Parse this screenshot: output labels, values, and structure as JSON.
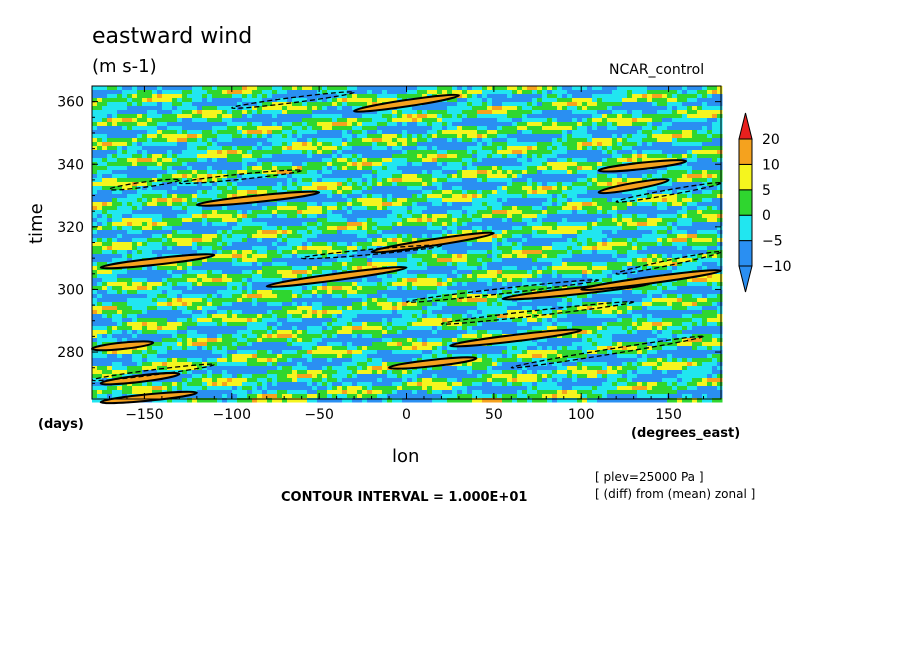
{
  "header": {
    "title": "eastward wind",
    "units": "(m s-1)",
    "run": "NCAR_control"
  },
  "footer": {
    "contour_interval": "CONTOUR INTERVAL = 1.000E+01",
    "level_note": "[ plev=25000 Pa ]",
    "diff_note": "[ (diff) from (mean) zonal ]"
  },
  "colors": {
    "red": "#e8201e",
    "orange": "#f5a21e",
    "yellow": "#f5f51e",
    "green": "#2fd62f",
    "cyan": "#21e6f0",
    "blue": "#2a8ff2"
  },
  "chart_data": {
    "type": "heatmap",
    "title": "eastward wind",
    "subtitle": "(m s-1)",
    "xlabel": "lon",
    "ylabel": "time",
    "x_units": "(degrees_east)",
    "y_units": "(days)",
    "xlim": [
      -180,
      180
    ],
    "ylim": [
      265,
      365
    ],
    "x_ticks": [
      -150,
      -100,
      -50,
      0,
      50,
      100,
      150
    ],
    "y_ticks": [
      280,
      300,
      320,
      340,
      360
    ],
    "colorbar": {
      "levels": [
        -10,
        -5,
        0,
        5,
        10,
        20
      ],
      "colors": [
        "#2a8ff2",
        "#21e6f0",
        "#2fd62f",
        "#f5f51e",
        "#f5a21e",
        "#e8201e"
      ]
    },
    "contours": [
      {
        "lon_start": -175,
        "lon_end": -110,
        "time_start": 307,
        "time_end": 311,
        "level": 10
      },
      {
        "lon_start": -180,
        "lon_end": -145,
        "time_start": 281,
        "time_end": 283,
        "level": 10
      },
      {
        "lon_start": -175,
        "lon_end": -130,
        "time_start": 270,
        "time_end": 273,
        "level": 10
      },
      {
        "lon_start": -175,
        "lon_end": -120,
        "time_start": 264,
        "time_end": 267,
        "level": 10
      },
      {
        "lon_start": -120,
        "lon_end": -50,
        "time_start": 327,
        "time_end": 331,
        "level": 10
      },
      {
        "lon_start": -80,
        "lon_end": 0,
        "time_start": 301,
        "time_end": 307,
        "level": 10
      },
      {
        "lon_start": -30,
        "lon_end": 30,
        "time_start": 357,
        "time_end": 362,
        "level": 10
      },
      {
        "lon_start": -20,
        "lon_end": 50,
        "time_start": 312,
        "time_end": 318,
        "level": 10
      },
      {
        "lon_start": 25,
        "lon_end": 100,
        "time_start": 282,
        "time_end": 287,
        "level": 10
      },
      {
        "lon_start": 55,
        "lon_end": 140,
        "time_start": 297,
        "time_end": 302,
        "level": 10
      },
      {
        "lon_start": 110,
        "lon_end": 160,
        "time_start": 338,
        "time_end": 341,
        "level": 10
      },
      {
        "lon_start": 110,
        "lon_end": 150,
        "time_start": 331,
        "time_end": 335,
        "level": 10
      },
      {
        "lon_start": 100,
        "lon_end": 180,
        "time_start": 300,
        "time_end": 306,
        "level": 10
      },
      {
        "lon_start": -10,
        "lon_end": 40,
        "time_start": 275,
        "time_end": 278,
        "level": 10
      },
      {
        "lon_start": -130,
        "lon_end": -60,
        "time_start": 334,
        "time_end": 338,
        "level": -10
      },
      {
        "lon_start": -100,
        "lon_end": -30,
        "time_start": 358,
        "time_end": 363,
        "level": -10
      },
      {
        "lon_start": -60,
        "lon_end": 20,
        "time_start": 310,
        "time_end": 314,
        "level": -10
      },
      {
        "lon_start": 0,
        "lon_end": 110,
        "time_start": 296,
        "time_end": 303,
        "level": -10
      },
      {
        "lon_start": 20,
        "lon_end": 130,
        "time_start": 289,
        "time_end": 296,
        "level": -10
      },
      {
        "lon_start": 60,
        "lon_end": 170,
        "time_start": 275,
        "time_end": 285,
        "level": -10
      },
      {
        "lon_start": 120,
        "lon_end": 180,
        "time_start": 328,
        "time_end": 334,
        "level": -10
      },
      {
        "lon_start": -180,
        "lon_end": -110,
        "time_start": 271,
        "time_end": 276,
        "level": -10
      },
      {
        "lon_start": -170,
        "lon_end": -130,
        "time_start": 332,
        "time_end": 335,
        "level": -10
      },
      {
        "lon_start": 120,
        "lon_end": 180,
        "time_start": 305,
        "time_end": 312,
        "level": -10
      }
    ]
  }
}
